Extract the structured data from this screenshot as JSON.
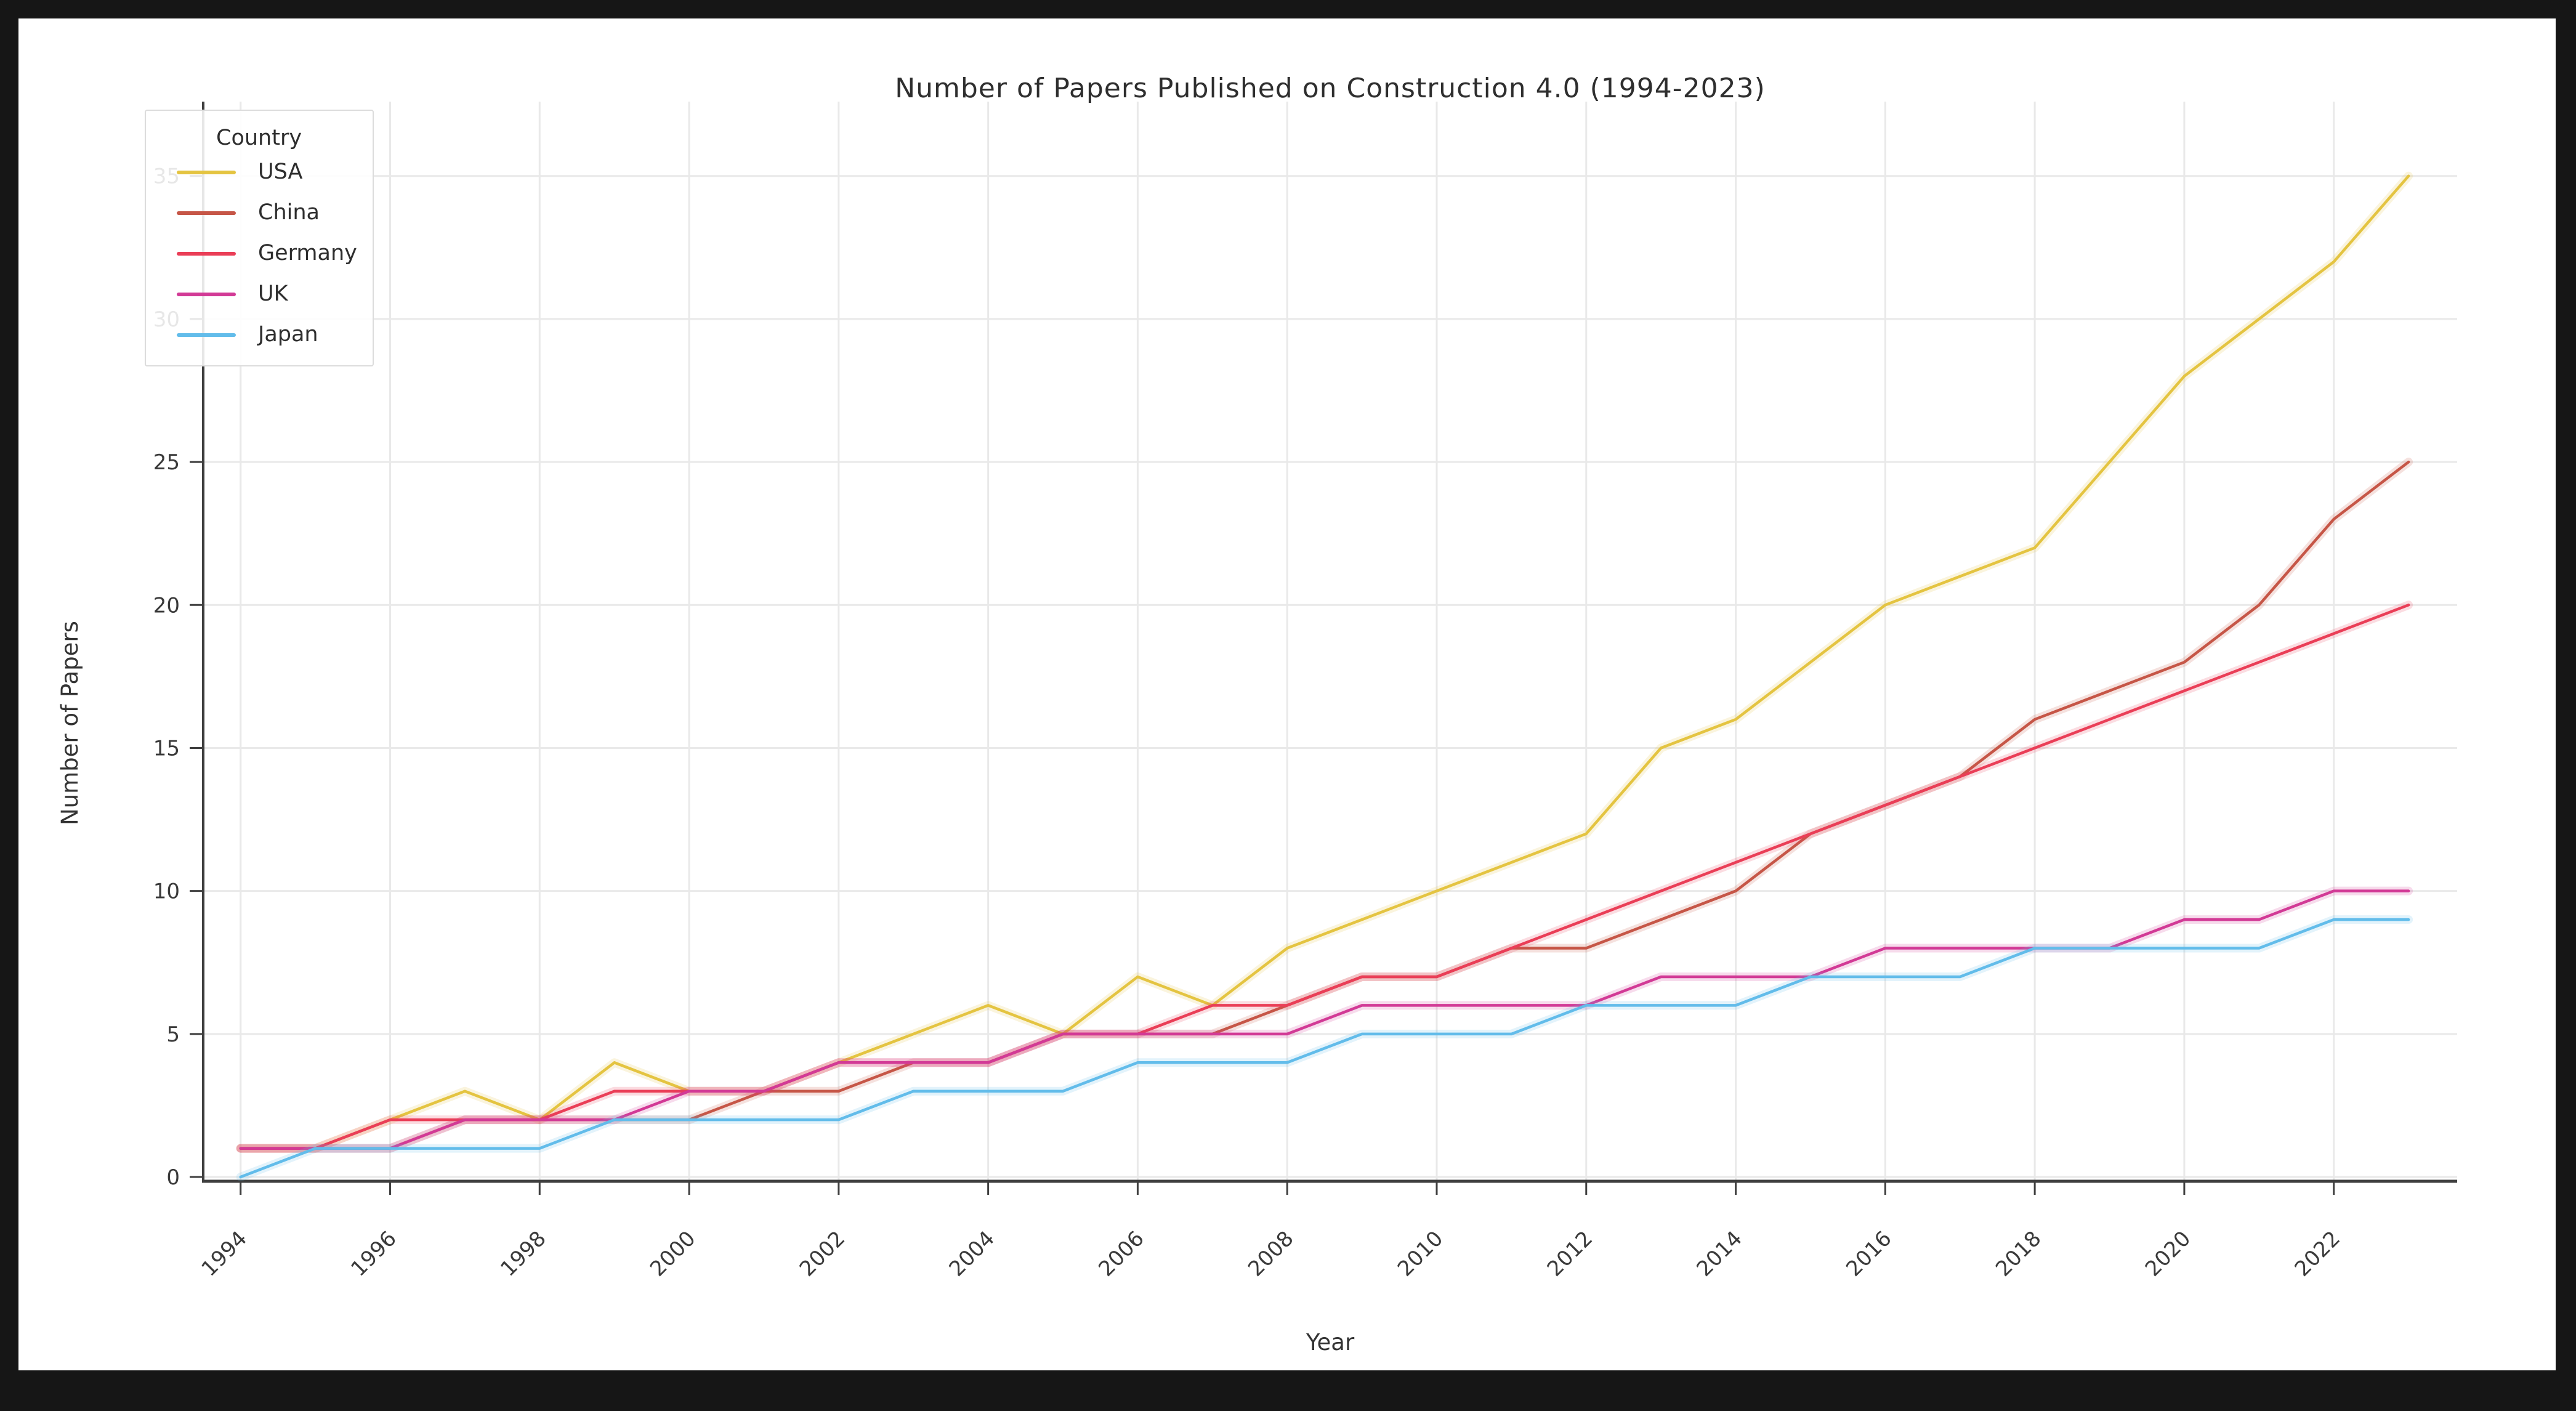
{
  "figure": {
    "title": "Number of Papers Published on Construction 4.0 (1994-2023)",
    "xlabel": "Year",
    "ylabel": "Number of Papers"
  },
  "legend": {
    "title": "Country"
  },
  "chart_data": {
    "type": "line",
    "title": "Number of Papers Published on Construction 4.0 (1994-2023)",
    "xlabel": "Year",
    "ylabel": "Number of Papers",
    "x": [
      1994,
      1995,
      1996,
      1997,
      1998,
      1999,
      2000,
      2001,
      2002,
      2003,
      2004,
      2005,
      2006,
      2007,
      2008,
      2009,
      2010,
      2011,
      2012,
      2013,
      2014,
      2015,
      2016,
      2017,
      2018,
      2019,
      2020,
      2021,
      2022,
      2023
    ],
    "series": [
      {
        "name": "USA",
        "color": "#e4c441",
        "values": [
          1,
          1,
          2,
          3,
          2,
          4,
          3,
          3,
          4,
          5,
          6,
          5,
          7,
          6,
          8,
          9,
          10,
          11,
          12,
          15,
          16,
          18,
          20,
          21,
          22,
          25,
          28,
          30,
          32,
          35
        ]
      },
      {
        "name": "China",
        "color": "#c65647",
        "values": [
          1,
          1,
          1,
          2,
          2,
          2,
          2,
          3,
          3,
          4,
          4,
          5,
          5,
          5,
          6,
          7,
          7,
          8,
          8,
          9,
          10,
          12,
          13,
          14,
          16,
          17,
          18,
          20,
          23,
          25
        ]
      },
      {
        "name": "Germany",
        "color": "#ea3e57",
        "values": [
          1,
          1,
          2,
          2,
          2,
          3,
          3,
          3,
          4,
          4,
          4,
          5,
          5,
          6,
          6,
          7,
          7,
          8,
          9,
          10,
          11,
          12,
          13,
          14,
          15,
          16,
          17,
          18,
          19,
          20
        ]
      },
      {
        "name": "UK",
        "color": "#d23a96",
        "values": [
          1,
          1,
          1,
          2,
          2,
          2,
          3,
          3,
          4,
          4,
          4,
          5,
          5,
          5,
          5,
          6,
          6,
          6,
          6,
          7,
          7,
          7,
          8,
          8,
          8,
          8,
          9,
          9,
          10,
          10
        ]
      },
      {
        "name": "Japan",
        "color": "#62bcea",
        "values": [
          0,
          1,
          1,
          1,
          1,
          2,
          2,
          2,
          2,
          3,
          3,
          3,
          4,
          4,
          4,
          5,
          5,
          5,
          6,
          6,
          6,
          7,
          7,
          7,
          8,
          8,
          8,
          8,
          9,
          9
        ]
      }
    ],
    "x_ticks": [
      1994,
      1996,
      1998,
      2000,
      2002,
      2004,
      2006,
      2008,
      2010,
      2012,
      2014,
      2016,
      2018,
      2020,
      2022
    ],
    "y_ticks": [
      0,
      5,
      10,
      15,
      20,
      25,
      30,
      35
    ],
    "xlim": [
      1993.5,
      2023.65
    ],
    "ylim": [
      -0.15,
      37.6
    ],
    "grid": true,
    "legend_position": "upper-left"
  },
  "colors": {
    "frame": "#161616",
    "background": "#ffffff",
    "grid": "#e9e9e9",
    "spine": "#3f3f3f",
    "tick_text": "#3a3a3a",
    "title_text": "#2e2e2e"
  }
}
